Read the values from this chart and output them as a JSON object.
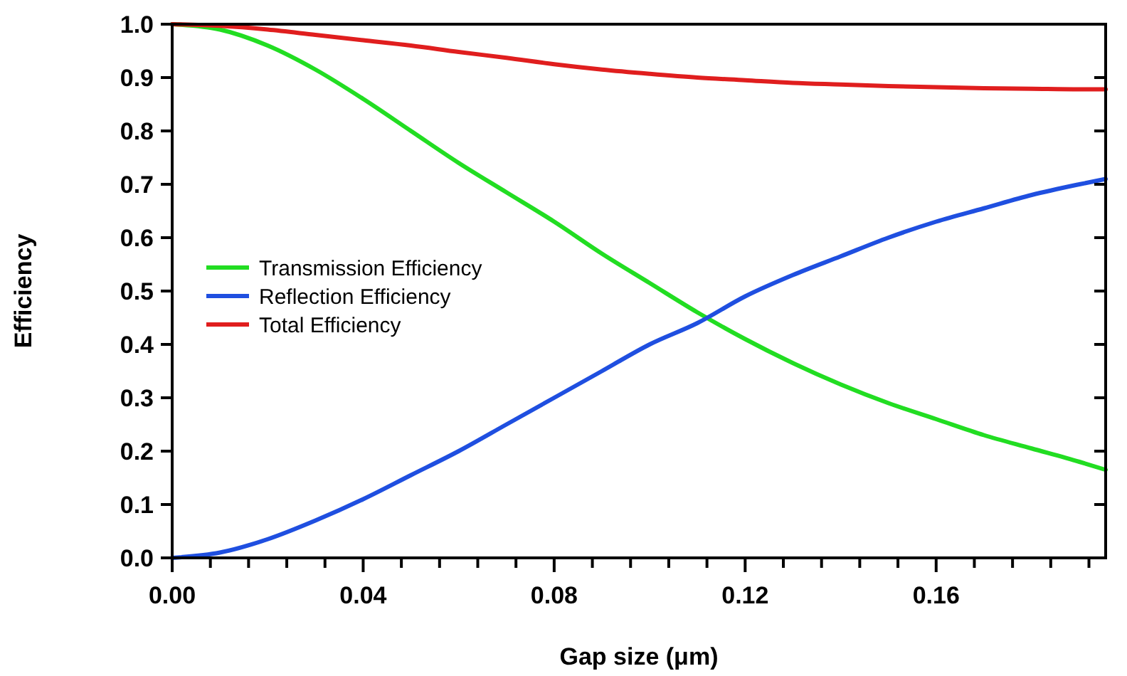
{
  "chart_data": {
    "type": "line",
    "xlabel": "Gap size (μm)",
    "ylabel": "Efficiency",
    "x": [
      0,
      0.01,
      0.02,
      0.03,
      0.04,
      0.05,
      0.06,
      0.07,
      0.08,
      0.09,
      0.1,
      0.11,
      0.12,
      0.13,
      0.14,
      0.15,
      0.16,
      0.17,
      0.18,
      0.19,
      0.1955
    ],
    "series": [
      {
        "name": "Transmission Efficiency",
        "color": "#22dd22",
        "values": [
          1.0,
          0.99,
          0.96,
          0.915,
          0.86,
          0.8,
          0.74,
          0.685,
          0.63,
          0.57,
          0.515,
          0.46,
          0.41,
          0.365,
          0.325,
          0.29,
          0.26,
          0.23,
          0.205,
          0.18,
          0.165
        ]
      },
      {
        "name": "Reflection Efficiency",
        "color": "#1f4fe0",
        "values": [
          0.0,
          0.01,
          0.035,
          0.07,
          0.11,
          0.155,
          0.2,
          0.25,
          0.3,
          0.35,
          0.4,
          0.44,
          0.49,
          0.53,
          0.565,
          0.6,
          0.63,
          0.655,
          0.68,
          0.7,
          0.71
        ]
      },
      {
        "name": "Total Efficiency",
        "color": "#e01e1e",
        "values": [
          1.0,
          0.997,
          0.99,
          0.98,
          0.97,
          0.96,
          0.948,
          0.937,
          0.925,
          0.915,
          0.907,
          0.9,
          0.895,
          0.89,
          0.887,
          0.884,
          0.882,
          0.88,
          0.879,
          0.878,
          0.878
        ]
      }
    ],
    "xlim": [
      0,
      0.1955
    ],
    "ylim": [
      0,
      1.0
    ],
    "xticks": [
      {
        "value": 0,
        "label": "0.00"
      },
      {
        "value": 0.008,
        "label": null
      },
      {
        "value": 0.016,
        "label": null
      },
      {
        "value": 0.024,
        "label": null
      },
      {
        "value": 0.032,
        "label": null
      },
      {
        "value": 0.04,
        "label": "0.04"
      },
      {
        "value": 0.048,
        "label": null
      },
      {
        "value": 0.056,
        "label": null
      },
      {
        "value": 0.064,
        "label": null
      },
      {
        "value": 0.072,
        "label": null
      },
      {
        "value": 0.08,
        "label": "0.08"
      },
      {
        "value": 0.088,
        "label": null
      },
      {
        "value": 0.096,
        "label": null
      },
      {
        "value": 0.104,
        "label": null
      },
      {
        "value": 0.112,
        "label": null
      },
      {
        "value": 0.12,
        "label": "0.12"
      },
      {
        "value": 0.128,
        "label": null
      },
      {
        "value": 0.136,
        "label": null
      },
      {
        "value": 0.144,
        "label": null
      },
      {
        "value": 0.152,
        "label": null
      },
      {
        "value": 0.16,
        "label": "0.16"
      },
      {
        "value": 0.168,
        "label": null
      },
      {
        "value": 0.176,
        "label": null
      },
      {
        "value": 0.184,
        "label": null
      },
      {
        "value": 0.192,
        "label": null
      }
    ],
    "yticks": [
      {
        "value": 0,
        "label": "0.0"
      },
      {
        "value": 0.1,
        "label": "0.1"
      },
      {
        "value": 0.2,
        "label": "0.2"
      },
      {
        "value": 0.3,
        "label": "0.3"
      },
      {
        "value": 0.4,
        "label": "0.4"
      },
      {
        "value": 0.5,
        "label": "0.5"
      },
      {
        "value": 0.6,
        "label": "0.6"
      },
      {
        "value": 0.7,
        "label": "0.7"
      },
      {
        "value": 0.8,
        "label": "0.8"
      },
      {
        "value": 0.9,
        "label": "0.9"
      },
      {
        "value": 1.0,
        "label": "1.0"
      }
    ],
    "grid": false,
    "legend": "left",
    "marker": "none",
    "line_style": "solid"
  }
}
